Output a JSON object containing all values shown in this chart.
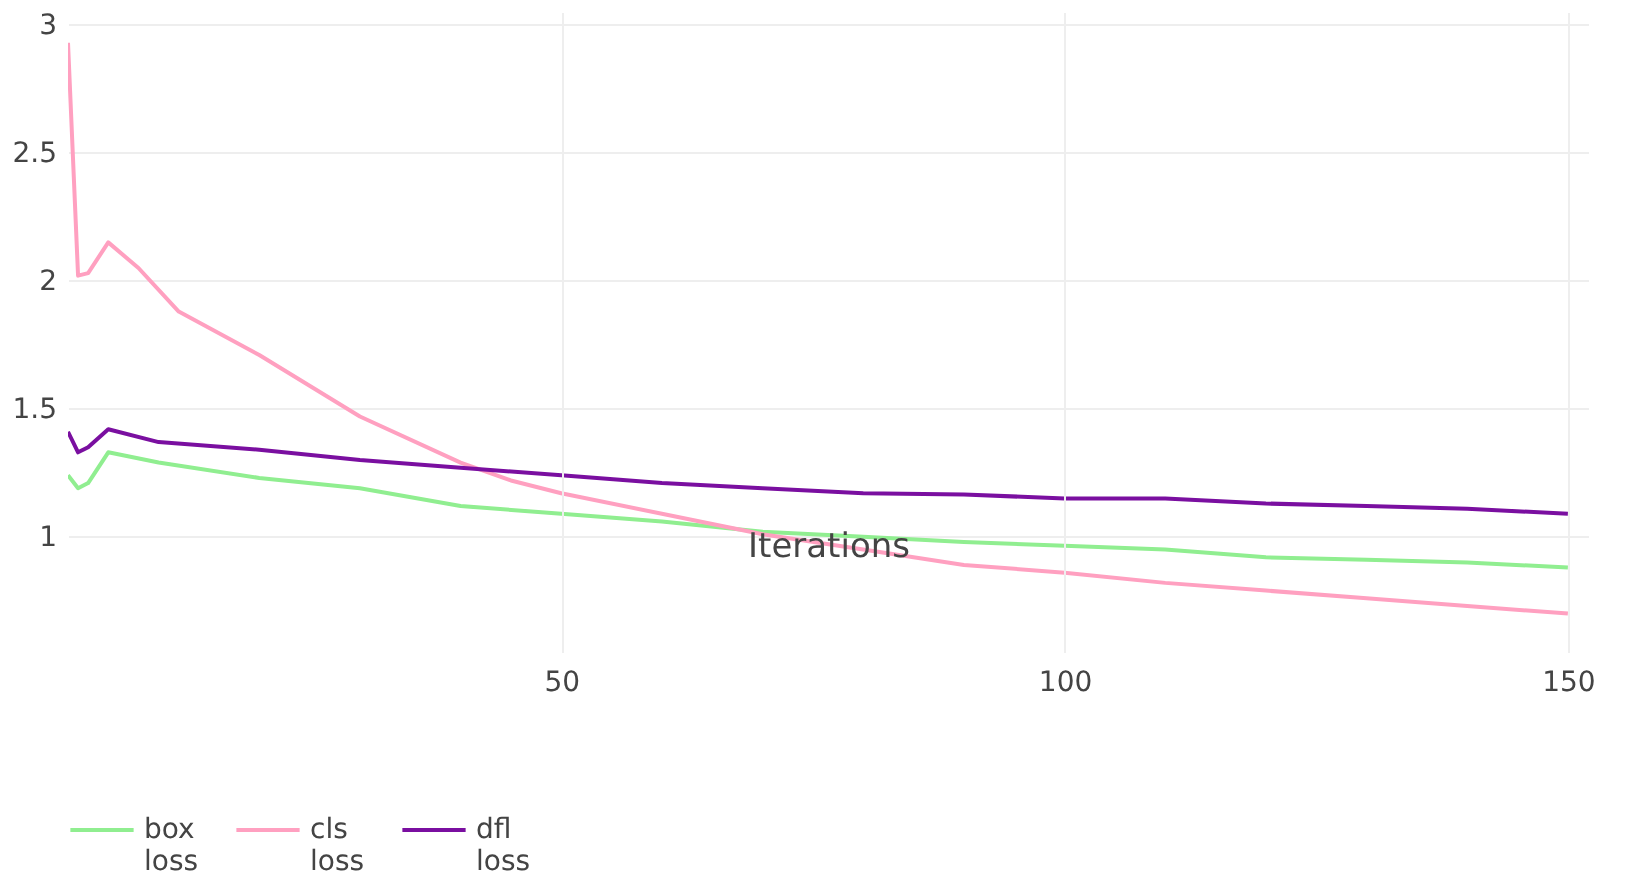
{
  "chart_data": {
    "type": "line",
    "xlabel": "Iterations",
    "xlim": [
      1,
      152
    ],
    "ylim": [
      0.55,
      3.05
    ],
    "xticks": [
      50,
      100,
      150
    ],
    "yticks": [
      1,
      1.5,
      2,
      2.5,
      3
    ],
    "grid": true,
    "legend": "bottom",
    "line_style": "solid",
    "marker": "none",
    "series": [
      {
        "name": "box loss",
        "color": "#90ee90",
        "x": [
          1,
          2,
          3,
          5,
          10,
          20,
          30,
          40,
          50,
          60,
          70,
          80,
          90,
          100,
          110,
          120,
          130,
          140,
          150
        ],
        "values": [
          1.24,
          1.19,
          1.21,
          1.33,
          1.29,
          1.23,
          1.19,
          1.12,
          1.09,
          1.06,
          1.02,
          1.0,
          0.98,
          0.965,
          0.95,
          0.92,
          0.91,
          0.9,
          0.88
        ]
      },
      {
        "name": "cls loss",
        "color": "#ffa0c0",
        "x": [
          1,
          2,
          3,
          5,
          8,
          12,
          20,
          30,
          40,
          45,
          50,
          60,
          70,
          80,
          90,
          100,
          110,
          120,
          130,
          140,
          150
        ],
        "values": [
          2.93,
          2.02,
          2.03,
          2.15,
          2.05,
          1.88,
          1.71,
          1.47,
          1.29,
          1.22,
          1.17,
          1.09,
          1.01,
          0.95,
          0.89,
          0.86,
          0.82,
          0.79,
          0.76,
          0.73,
          0.7
        ]
      },
      {
        "name": "dfl loss",
        "color": "#7a0fa0",
        "x": [
          1,
          2,
          3,
          5,
          10,
          20,
          30,
          40,
          50,
          60,
          70,
          80,
          90,
          100,
          110,
          120,
          130,
          140,
          150
        ],
        "values": [
          1.41,
          1.33,
          1.35,
          1.42,
          1.37,
          1.34,
          1.3,
          1.27,
          1.24,
          1.21,
          1.19,
          1.17,
          1.165,
          1.15,
          1.15,
          1.13,
          1.12,
          1.11,
          1.09
        ]
      }
    ]
  }
}
